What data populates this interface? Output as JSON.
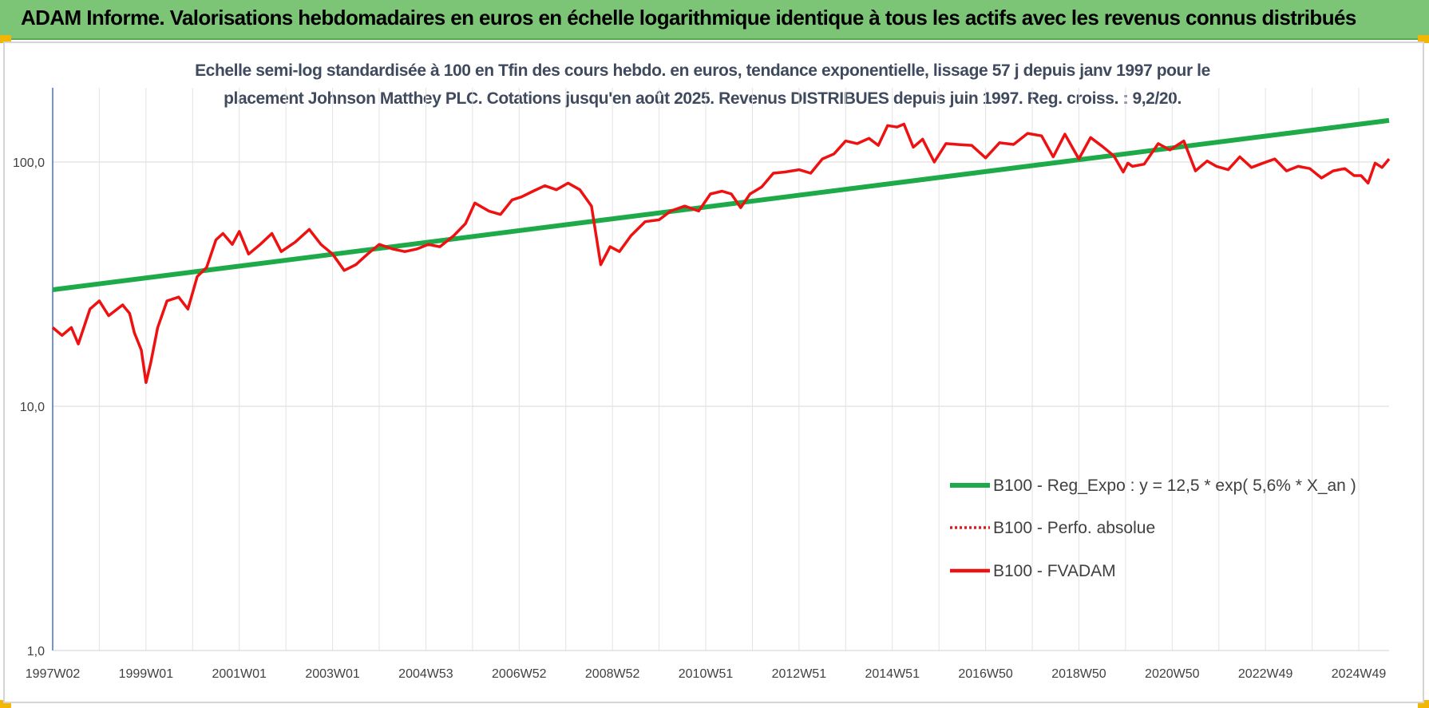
{
  "header": {
    "title": "ADAM Informe. Valorisations hebdomadaires en euros en échelle logarithmique identique à tous les actifs avec les revenus connus distribués"
  },
  "chart_data": {
    "type": "line",
    "subtitle_line1": "Echelle semi-log standardisée à 100 en Tfin des cours hebdo. en euros, tendance exponentielle, lissage 57 j depuis janv 1997 pour le",
    "subtitle_line2": "placement Johnson Matthey PLC. Cotations jusqu'en août 2025. Revenus DISTRIBUES depuis juin 1997. Reg. croiss. : 9,2/20.",
    "y_scale": "log",
    "ylim": [
      1,
      200
    ],
    "y_ticks": [
      {
        "value": 1,
        "label": "1,0"
      },
      {
        "value": 10,
        "label": "10,0"
      },
      {
        "value": 100,
        "label": "100,0"
      }
    ],
    "xlim": [
      1997.0,
      2025.65
    ],
    "x_ticks": [
      {
        "value": 1997.0,
        "label": "1997W02"
      },
      {
        "value": 1999.0,
        "label": "1999W01"
      },
      {
        "value": 2001.0,
        "label": "2001W01"
      },
      {
        "value": 2003.0,
        "label": "2003W01"
      },
      {
        "value": 2005.0,
        "label": "2004W53"
      },
      {
        "value": 2007.0,
        "label": "2006W52"
      },
      {
        "value": 2009.0,
        "label": "2008W52"
      },
      {
        "value": 2011.0,
        "label": "2010W51"
      },
      {
        "value": 2013.0,
        "label": "2012W51"
      },
      {
        "value": 2015.0,
        "label": "2014W51"
      },
      {
        "value": 2017.0,
        "label": "2016W50"
      },
      {
        "value": 2019.0,
        "label": "2018W50"
      },
      {
        "value": 2021.0,
        "label": "2020W50"
      },
      {
        "value": 2023.0,
        "label": "2022W49"
      },
      {
        "value": 2025.0,
        "label": "2024W49"
      }
    ],
    "grid": true,
    "legend_position": "bottom-right",
    "series": [
      {
        "name": "B100 - Reg_Expo : y = 12,5 * exp( 5,6% *  X_an )",
        "color": "#1faa4a",
        "style": "solid",
        "x": [
          1997.0,
          2025.65
        ],
        "values": [
          30.0,
          148.0
        ]
      },
      {
        "name": "B100 - Perfo. absolue",
        "color": "#e31a1c",
        "style": "dotted",
        "x": [],
        "values": []
      },
      {
        "name": "B100 - FVADAM",
        "color": "#ee1111",
        "style": "solid",
        "x": [
          1997.0,
          1997.2,
          1997.4,
          1997.55,
          1997.8,
          1998.0,
          1998.2,
          1998.5,
          1998.65,
          1998.75,
          1998.9,
          1999.0,
          1999.1,
          1999.25,
          1999.45,
          1999.7,
          1999.9,
          2000.1,
          2000.3,
          2000.5,
          2000.65,
          2000.85,
          2001.0,
          2001.2,
          2001.45,
          2001.7,
          2001.9,
          2002.2,
          2002.5,
          2002.75,
          2003.0,
          2003.25,
          2003.5,
          2003.75,
          2004.0,
          2004.3,
          2004.55,
          2004.8,
          2005.05,
          2005.3,
          2005.6,
          2005.85,
          2006.05,
          2006.35,
          2006.6,
          2006.85,
          2007.05,
          2007.3,
          2007.55,
          2007.8,
          2008.05,
          2008.3,
          2008.55,
          2008.75,
          2008.95,
          2009.15,
          2009.4,
          2009.7,
          2010.0,
          2010.25,
          2010.55,
          2010.85,
          2011.1,
          2011.35,
          2011.55,
          2011.75,
          2011.95,
          2012.2,
          2012.45,
          2012.7,
          2013.0,
          2013.25,
          2013.5,
          2013.75,
          2014.0,
          2014.25,
          2014.5,
          2014.7,
          2014.9,
          2015.1,
          2015.25,
          2015.45,
          2015.65,
          2015.9,
          2016.15,
          2016.4,
          2016.7,
          2017.0,
          2017.3,
          2017.6,
          2017.9,
          2018.2,
          2018.45,
          2018.7,
          2019.0,
          2019.25,
          2019.5,
          2019.75,
          2019.95,
          2020.05,
          2020.15,
          2020.4,
          2020.7,
          2020.95,
          2021.25,
          2021.5,
          2021.75,
          2021.95,
          2022.2,
          2022.45,
          2022.7,
          2022.95,
          2023.2,
          2023.45,
          2023.7,
          2023.95,
          2024.2,
          2024.45,
          2024.7,
          2024.9,
          2025.05,
          2025.2,
          2025.35,
          2025.5,
          2025.65
        ],
        "values": [
          21,
          19.5,
          21,
          18,
          25,
          27,
          23.5,
          26,
          24,
          20,
          17,
          12.5,
          15,
          21,
          27,
          28,
          25,
          34,
          37,
          48,
          51,
          46,
          52,
          42,
          46,
          51,
          43,
          47,
          53,
          46,
          42,
          36,
          38,
          42,
          46,
          44,
          43,
          44,
          46,
          45,
          50,
          56,
          68,
          63,
          61,
          70,
          72,
          76,
          80,
          77,
          82,
          77,
          66,
          38,
          45,
          43,
          50,
          57,
          58,
          63,
          66,
          63,
          74,
          76,
          74,
          65,
          74,
          79,
          90,
          91,
          93,
          90,
          103,
          108,
          122,
          119,
          125,
          117,
          141,
          139,
          143,
          115,
          124,
          100,
          119,
          118,
          117,
          104,
          120,
          118,
          131,
          128,
          105,
          130,
          103,
          126,
          116,
          106,
          91,
          99,
          96,
          98,
          119,
          112,
          122,
          92,
          101,
          96,
          93,
          105,
          95,
          99,
          103,
          92,
          96,
          94,
          86,
          92,
          94,
          88,
          88,
          82,
          99,
          95,
          103
        ]
      }
    ]
  }
}
